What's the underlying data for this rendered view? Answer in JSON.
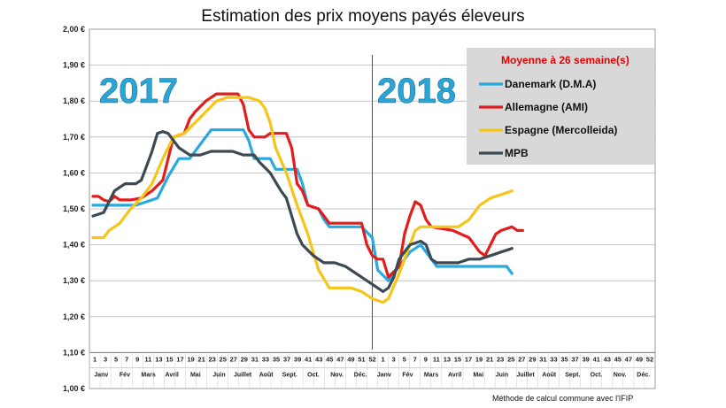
{
  "chart_data": {
    "type": "line",
    "title": "Estimation des prix moyens payés éleveurs",
    "ylim": [
      1.0,
      2.0
    ],
    "y_ticks": [
      "2,00 €",
      "1,90 €",
      "1,80 €",
      "1,70 €",
      "1,60 €",
      "1,50 €",
      "1,40 €",
      "1,30 €",
      "1,20 €",
      "1,10 €",
      "1,00 €"
    ],
    "y_tick_values": [
      2.0,
      1.9,
      1.8,
      1.7,
      1.6,
      1.5,
      1.4,
      1.3,
      1.2,
      1.1,
      1.0
    ],
    "week_labels": [
      "1",
      "3",
      "5",
      "7",
      "9",
      "11",
      "13",
      "15",
      "17",
      "19",
      "21",
      "23",
      "25",
      "27",
      "29",
      "31",
      "33",
      "35",
      "37",
      "39",
      "41",
      "43",
      "45",
      "47",
      "49",
      "51",
      "52",
      "1",
      "3",
      "5",
      "7",
      "9",
      "11",
      "13",
      "15",
      "17",
      "19",
      "21",
      "23",
      "25",
      "27",
      "29",
      "31",
      "33",
      "35",
      "37",
      "39",
      "41",
      "43",
      "45",
      "47",
      "49",
      "52"
    ],
    "month_labels": [
      "Janv",
      "Fév",
      "Mars",
      "Avril",
      "Mai",
      "Juin",
      "Juillet",
      "Août",
      "Sept.",
      "Oct.",
      "Nov.",
      "Déc.",
      "Janv",
      "Fév",
      "Mars",
      "Avril",
      "Mai",
      "Juin",
      "Juillet",
      "Août",
      "Sept.",
      "Oct.",
      "Nov.",
      "Déc."
    ],
    "year_labels": [
      "2017",
      "2018"
    ],
    "x_unit": "week index (0 = week 1 of 2017, 52 = week 1 of 2018)",
    "x_range": [
      0,
      104
    ],
    "year_divider_x": 52,
    "legend_title": "Moyenne à  26 semaine(s)",
    "series": [
      {
        "name": "Danemark (D.M.A)",
        "color": "#29a9df",
        "points": [
          [
            0,
            1.51
          ],
          [
            2,
            1.51
          ],
          [
            4,
            1.51
          ],
          [
            6,
            1.51
          ],
          [
            8,
            1.51
          ],
          [
            10,
            1.52
          ],
          [
            12,
            1.53
          ],
          [
            14,
            1.59
          ],
          [
            16,
            1.64
          ],
          [
            18,
            1.64
          ],
          [
            20,
            1.68
          ],
          [
            22,
            1.72
          ],
          [
            25,
            1.72
          ],
          [
            28,
            1.72
          ],
          [
            29,
            1.69
          ],
          [
            30,
            1.64
          ],
          [
            33,
            1.64
          ],
          [
            34,
            1.61
          ],
          [
            38,
            1.61
          ],
          [
            39,
            1.57
          ],
          [
            40,
            1.51
          ],
          [
            42,
            1.5
          ],
          [
            43,
            1.47
          ],
          [
            44,
            1.45
          ],
          [
            50,
            1.45
          ],
          [
            52,
            1.42
          ],
          [
            53,
            1.33
          ],
          [
            55,
            1.3
          ],
          [
            57,
            1.34
          ],
          [
            59,
            1.38
          ],
          [
            61,
            1.4
          ],
          [
            63,
            1.36
          ],
          [
            64,
            1.34
          ],
          [
            69,
            1.34
          ],
          [
            73,
            1.34
          ],
          [
            77,
            1.34
          ],
          [
            78,
            1.32
          ]
        ]
      },
      {
        "name": "Allemagne (AMI)",
        "color": "#e31c1c",
        "points": [
          [
            0,
            1.535
          ],
          [
            1,
            1.535
          ],
          [
            2,
            1.525
          ],
          [
            3,
            1.52
          ],
          [
            4,
            1.535
          ],
          [
            5,
            1.525
          ],
          [
            7,
            1.525
          ],
          [
            9,
            1.53
          ],
          [
            11,
            1.55
          ],
          [
            13,
            1.58
          ],
          [
            15,
            1.7
          ],
          [
            17,
            1.71
          ],
          [
            18,
            1.75
          ],
          [
            19,
            1.77
          ],
          [
            21,
            1.8
          ],
          [
            23,
            1.82
          ],
          [
            27,
            1.82
          ],
          [
            28,
            1.79
          ],
          [
            29,
            1.72
          ],
          [
            30,
            1.7
          ],
          [
            32,
            1.7
          ],
          [
            33,
            1.71
          ],
          [
            36,
            1.71
          ],
          [
            37,
            1.67
          ],
          [
            38,
            1.57
          ],
          [
            39,
            1.55
          ],
          [
            40,
            1.51
          ],
          [
            42,
            1.5
          ],
          [
            43,
            1.48
          ],
          [
            44,
            1.46
          ],
          [
            50,
            1.46
          ],
          [
            51,
            1.4
          ],
          [
            52,
            1.37
          ],
          [
            53,
            1.36
          ],
          [
            54,
            1.36
          ],
          [
            55,
            1.31
          ],
          [
            57,
            1.34
          ],
          [
            58,
            1.43
          ],
          [
            59,
            1.48
          ],
          [
            60,
            1.52
          ],
          [
            61,
            1.51
          ],
          [
            62,
            1.47
          ],
          [
            63,
            1.45
          ],
          [
            67,
            1.44
          ],
          [
            70,
            1.42
          ],
          [
            72,
            1.38
          ],
          [
            73,
            1.37
          ],
          [
            75,
            1.43
          ],
          [
            76,
            1.44
          ],
          [
            78,
            1.45
          ],
          [
            79,
            1.44
          ],
          [
            80,
            1.44
          ]
        ]
      },
      {
        "name": "Espagne (Mercolleida)",
        "color": "#f5c518",
        "points": [
          [
            0,
            1.42
          ],
          [
            2,
            1.42
          ],
          [
            3,
            1.44
          ],
          [
            5,
            1.46
          ],
          [
            7,
            1.5
          ],
          [
            9,
            1.53
          ],
          [
            11,
            1.57
          ],
          [
            13,
            1.64
          ],
          [
            15,
            1.7
          ],
          [
            17,
            1.71
          ],
          [
            19,
            1.74
          ],
          [
            21,
            1.77
          ],
          [
            23,
            1.8
          ],
          [
            25,
            1.81
          ],
          [
            29,
            1.81
          ],
          [
            31,
            1.8
          ],
          [
            32,
            1.78
          ],
          [
            33,
            1.74
          ],
          [
            34,
            1.67
          ],
          [
            36,
            1.6
          ],
          [
            38,
            1.51
          ],
          [
            40,
            1.43
          ],
          [
            42,
            1.33
          ],
          [
            44,
            1.28
          ],
          [
            46,
            1.28
          ],
          [
            48,
            1.28
          ],
          [
            50,
            1.27
          ],
          [
            52,
            1.25
          ],
          [
            54,
            1.24
          ],
          [
            55,
            1.25
          ],
          [
            57,
            1.32
          ],
          [
            59,
            1.4
          ],
          [
            60,
            1.44
          ],
          [
            61,
            1.45
          ],
          [
            63,
            1.45
          ],
          [
            65,
            1.45
          ],
          [
            68,
            1.45
          ],
          [
            70,
            1.47
          ],
          [
            72,
            1.51
          ],
          [
            74,
            1.53
          ],
          [
            76,
            1.54
          ],
          [
            78,
            1.55
          ]
        ]
      },
      {
        "name": "MPB",
        "color": "#3d4a53",
        "points": [
          [
            0,
            1.48
          ],
          [
            2,
            1.49
          ],
          [
            3,
            1.52
          ],
          [
            4,
            1.55
          ],
          [
            5,
            1.56
          ],
          [
            6,
            1.57
          ],
          [
            8,
            1.57
          ],
          [
            9,
            1.58
          ],
          [
            10,
            1.62
          ],
          [
            11,
            1.66
          ],
          [
            12,
            1.71
          ],
          [
            13,
            1.715
          ],
          [
            14,
            1.71
          ],
          [
            16,
            1.67
          ],
          [
            18,
            1.65
          ],
          [
            20,
            1.65
          ],
          [
            22,
            1.66
          ],
          [
            24,
            1.66
          ],
          [
            26,
            1.66
          ],
          [
            28,
            1.65
          ],
          [
            30,
            1.65
          ],
          [
            31,
            1.63
          ],
          [
            33,
            1.6
          ],
          [
            35,
            1.55
          ],
          [
            36,
            1.53
          ],
          [
            37,
            1.48
          ],
          [
            38,
            1.43
          ],
          [
            39,
            1.4
          ],
          [
            41,
            1.37
          ],
          [
            43,
            1.35
          ],
          [
            45,
            1.35
          ],
          [
            47,
            1.34
          ],
          [
            49,
            1.32
          ],
          [
            51,
            1.3
          ],
          [
            53,
            1.28
          ],
          [
            54,
            1.27
          ],
          [
            55,
            1.28
          ],
          [
            56,
            1.31
          ],
          [
            57,
            1.36
          ],
          [
            59,
            1.4
          ],
          [
            61,
            1.41
          ],
          [
            62,
            1.4
          ],
          [
            63,
            1.36
          ],
          [
            64,
            1.35
          ],
          [
            66,
            1.35
          ],
          [
            68,
            1.35
          ],
          [
            70,
            1.36
          ],
          [
            72,
            1.36
          ],
          [
            74,
            1.37
          ],
          [
            76,
            1.38
          ],
          [
            78,
            1.39
          ]
        ]
      }
    ],
    "footnote": "Méthode de calcul commune avec l'IFIP"
  }
}
